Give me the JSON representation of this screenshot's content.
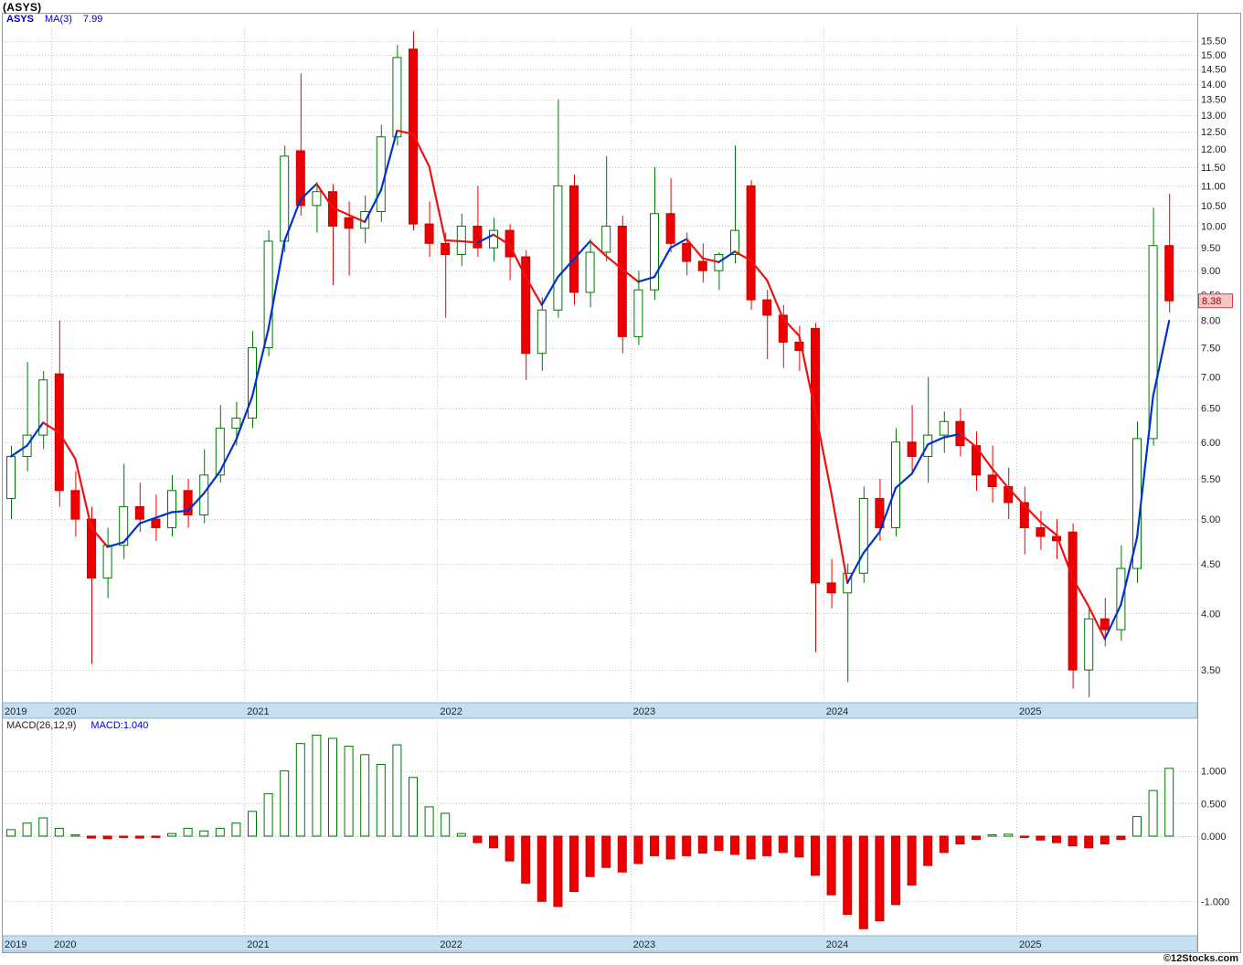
{
  "title": "(ASYS)",
  "watermark": "©12Stocks.com",
  "price_badge": "8.38",
  "main_legend": {
    "symbol": "ASYS",
    "ma_label": "MA(3)",
    "ma_value": "7.99"
  },
  "macd_legend": {
    "label": "MACD(26,12,9)",
    "value": "MACD:1.040"
  },
  "colors": {
    "up": "#007700",
    "down": "#ee0000",
    "down_stroke": "#cc0000",
    "ma_up": "#0033cc",
    "ma_down": "#ee1111",
    "grid": "#c8c8c8",
    "band": "#c5dff0",
    "band_border": "#93b5cb",
    "axis_text": "#222222",
    "year_text": "#15243a",
    "badge_bg": "#f5c6c6",
    "badge_border": "#cc4444",
    "badge_text": "#990000",
    "accent_blue": "#0000cc"
  },
  "chart_data": [
    {
      "type": "candlestick",
      "title": "ASYS monthly candlesticks with MA(3)",
      "x_years": [
        "2019",
        "2020",
        "2021",
        "2022",
        "2023",
        "2024",
        "2025"
      ],
      "year_start_indices": [
        0,
        3,
        15,
        27,
        39,
        51,
        63
      ],
      "y_axis": {
        "scale": "log",
        "min": 3.26,
        "max": 16.0,
        "ticks": [
          15.5,
          15.0,
          14.5,
          14.0,
          13.5,
          13.0,
          12.5,
          12.0,
          11.5,
          11.0,
          10.5,
          10.0,
          9.5,
          9.0,
          8.5,
          8.0,
          7.5,
          7.0,
          6.5,
          6.0,
          5.5,
          5.0,
          4.5,
          4.0,
          3.5
        ]
      },
      "ma": {
        "window": 3,
        "last_value": 7.99
      },
      "last_close": 8.38,
      "candles": [
        [
          5.25,
          5.95,
          5.0,
          5.8
        ],
        [
          5.8,
          7.25,
          5.6,
          6.1
        ],
        [
          6.1,
          7.1,
          5.9,
          6.95
        ],
        [
          7.05,
          8.0,
          5.15,
          5.35
        ],
        [
          5.35,
          5.6,
          4.8,
          5.0
        ],
        [
          5.0,
          5.15,
          3.55,
          4.35
        ],
        [
          4.35,
          4.9,
          4.15,
          4.7
        ],
        [
          4.7,
          5.7,
          4.55,
          5.15
        ],
        [
          5.15,
          5.45,
          4.85,
          5.0
        ],
        [
          5.0,
          5.3,
          4.75,
          4.9
        ],
        [
          4.9,
          5.55,
          4.8,
          5.35
        ],
        [
          5.35,
          5.5,
          4.9,
          5.05
        ],
        [
          5.05,
          5.9,
          4.95,
          5.55
        ],
        [
          5.55,
          6.55,
          5.45,
          6.2
        ],
        [
          6.2,
          6.6,
          5.95,
          6.35
        ],
        [
          6.35,
          7.8,
          6.2,
          7.5
        ],
        [
          7.5,
          9.9,
          7.35,
          9.65
        ],
        [
          9.65,
          12.1,
          9.4,
          11.8
        ],
        [
          11.95,
          14.35,
          10.25,
          10.5
        ],
        [
          10.5,
          11.1,
          9.85,
          10.85
        ],
        [
          10.85,
          11.05,
          8.7,
          10.0
        ],
        [
          10.2,
          10.6,
          8.9,
          9.95
        ],
        [
          9.95,
          10.75,
          9.6,
          10.35
        ],
        [
          10.35,
          12.7,
          10.1,
          12.35
        ],
        [
          12.35,
          15.35,
          12.1,
          14.9
        ],
        [
          15.2,
          15.85,
          9.9,
          10.05
        ],
        [
          10.05,
          10.6,
          9.3,
          9.6
        ],
        [
          9.6,
          9.85,
          8.05,
          9.35
        ],
        [
          9.35,
          10.3,
          9.1,
          10.0
        ],
        [
          10.0,
          11.0,
          9.3,
          9.5
        ],
        [
          9.5,
          10.2,
          9.2,
          9.9
        ],
        [
          9.9,
          10.05,
          8.8,
          9.3
        ],
        [
          9.3,
          9.45,
          6.95,
          7.4
        ],
        [
          7.4,
          8.45,
          7.1,
          8.2
        ],
        [
          8.2,
          13.5,
          8.05,
          11.0
        ],
        [
          11.0,
          11.3,
          8.3,
          8.55
        ],
        [
          8.55,
          9.7,
          8.25,
          9.4
        ],
        [
          9.4,
          11.8,
          9.2,
          10.0
        ],
        [
          10.0,
          10.25,
          7.4,
          7.7
        ],
        [
          7.7,
          9.0,
          7.55,
          8.6
        ],
        [
          8.6,
          11.5,
          8.4,
          10.3
        ],
        [
          10.3,
          11.2,
          9.4,
          9.6
        ],
        [
          9.6,
          9.85,
          8.9,
          9.2
        ],
        [
          9.2,
          9.6,
          8.75,
          9.0
        ],
        [
          9.0,
          9.4,
          8.6,
          9.35
        ],
        [
          9.35,
          12.1,
          9.15,
          9.9
        ],
        [
          11.0,
          11.15,
          8.2,
          8.4
        ],
        [
          8.4,
          8.6,
          7.3,
          8.1
        ],
        [
          8.1,
          8.3,
          7.15,
          7.6
        ],
        [
          7.6,
          7.9,
          7.1,
          7.45
        ],
        [
          7.85,
          7.95,
          3.65,
          4.3
        ],
        [
          4.3,
          4.55,
          4.05,
          4.2
        ],
        [
          4.2,
          4.5,
          3.4,
          4.4
        ],
        [
          4.4,
          5.4,
          4.3,
          5.25
        ],
        [
          5.25,
          5.5,
          4.75,
          4.9
        ],
        [
          4.9,
          6.2,
          4.8,
          6.0
        ],
        [
          6.0,
          6.55,
          5.6,
          5.8
        ],
        [
          5.8,
          7.0,
          5.45,
          6.1
        ],
        [
          6.1,
          6.45,
          5.85,
          6.3
        ],
        [
          6.3,
          6.5,
          5.8,
          5.95
        ],
        [
          5.95,
          6.15,
          5.35,
          5.55
        ],
        [
          5.55,
          5.95,
          5.2,
          5.4
        ],
        [
          5.4,
          5.65,
          5.0,
          5.2
        ],
        [
          5.2,
          5.4,
          4.6,
          4.9
        ],
        [
          4.9,
          5.1,
          4.65,
          4.8
        ],
        [
          4.8,
          5.0,
          4.55,
          4.75
        ],
        [
          4.85,
          4.95,
          3.35,
          3.5
        ],
        [
          3.5,
          4.05,
          3.28,
          3.95
        ],
        [
          3.95,
          4.15,
          3.7,
          3.85
        ],
        [
          3.85,
          4.7,
          3.75,
          4.45
        ],
        [
          4.45,
          6.3,
          4.3,
          6.05
        ],
        [
          6.05,
          10.45,
          5.95,
          9.55
        ],
        [
          9.55,
          10.8,
          8.15,
          8.38
        ]
      ]
    },
    {
      "type": "bar",
      "title": "MACD(26,12,9) histogram",
      "last_value": 1.04,
      "y_axis": {
        "min": -1.5,
        "max": 1.78,
        "ticks": [
          1.0,
          0.5,
          0.0,
          -1.0
        ]
      },
      "values": [
        0.1,
        0.2,
        0.28,
        0.12,
        0.02,
        -0.03,
        -0.04,
        -0.02,
        -0.03,
        -0.02,
        0.04,
        0.12,
        0.08,
        0.12,
        0.2,
        0.38,
        0.65,
        1.0,
        1.42,
        1.55,
        1.5,
        1.38,
        1.25,
        1.1,
        1.4,
        0.9,
        0.45,
        0.35,
        0.04,
        -0.1,
        -0.18,
        -0.38,
        -0.72,
        -1.0,
        -1.08,
        -0.85,
        -0.62,
        -0.48,
        -0.55,
        -0.42,
        -0.3,
        -0.35,
        -0.3,
        -0.26,
        -0.22,
        -0.28,
        -0.35,
        -0.3,
        -0.25,
        -0.32,
        -0.6,
        -0.9,
        -1.2,
        -1.42,
        -1.3,
        -1.05,
        -0.75,
        -0.45,
        -0.25,
        -0.12,
        -0.05,
        0.02,
        0.03,
        -0.02,
        -0.06,
        -0.1,
        -0.15,
        -0.18,
        -0.12,
        -0.05,
        0.3,
        0.7,
        1.04
      ]
    }
  ]
}
